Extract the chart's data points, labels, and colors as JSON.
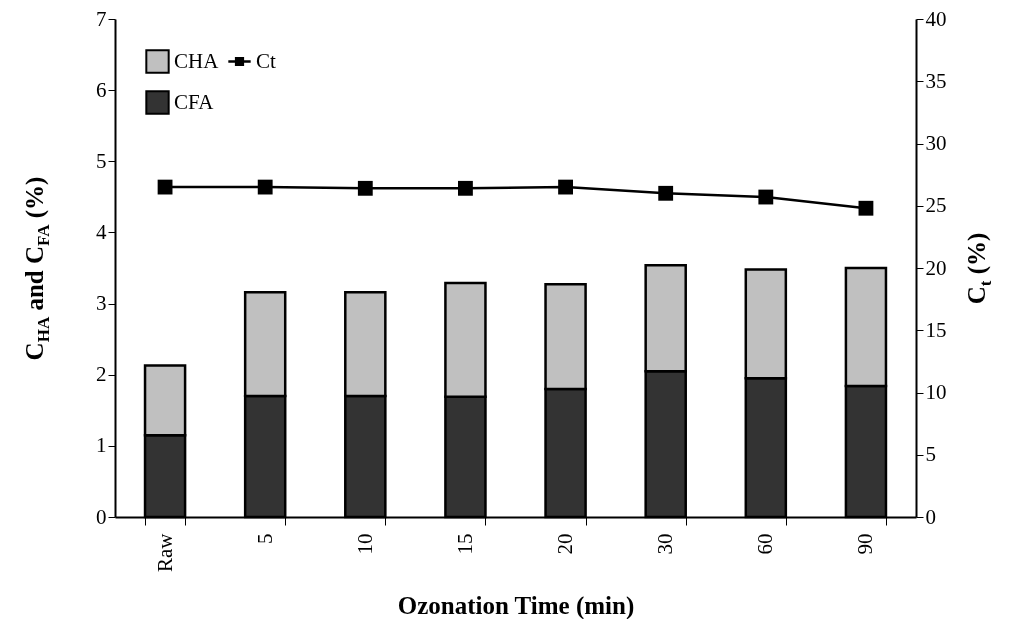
{
  "chart_data": {
    "type": "bar",
    "stacked": true,
    "xlabel": "Ozonation Time (min)",
    "ylabel": "C$_{HA}$ and  C$_{FA}$ (%)",
    "y2label": "C$_{t}$ (%)",
    "categories": [
      "Raw",
      "5",
      "10",
      "15",
      "20",
      "30",
      "60",
      "90"
    ],
    "series": [
      {
        "name": "CFA",
        "color": "#333333",
        "values": [
          1.15,
          1.7,
          1.7,
          1.69,
          1.8,
          2.05,
          1.95,
          1.84
        ]
      },
      {
        "name": "CHA",
        "color": "#c0c0c0",
        "values": [
          0.98,
          1.46,
          1.46,
          1.6,
          1.47,
          1.49,
          1.53,
          1.66
        ]
      },
      {
        "name": "Ct",
        "type": "line",
        "axis": "y2",
        "color": "#000000",
        "marker": "square",
        "line_style": "solid",
        "values": [
          26.5,
          26.5,
          26.4,
          26.4,
          26.5,
          26.0,
          25.7,
          24.8
        ]
      }
    ],
    "ylim": [
      0,
      7
    ],
    "yticks": [
      0,
      1,
      2,
      3,
      4,
      5,
      6,
      7
    ],
    "y2lim": [
      0,
      40
    ],
    "y2ticks": [
      0,
      5,
      10,
      15,
      20,
      25,
      30,
      35,
      40
    ],
    "grid": false,
    "legend": "top left"
  }
}
